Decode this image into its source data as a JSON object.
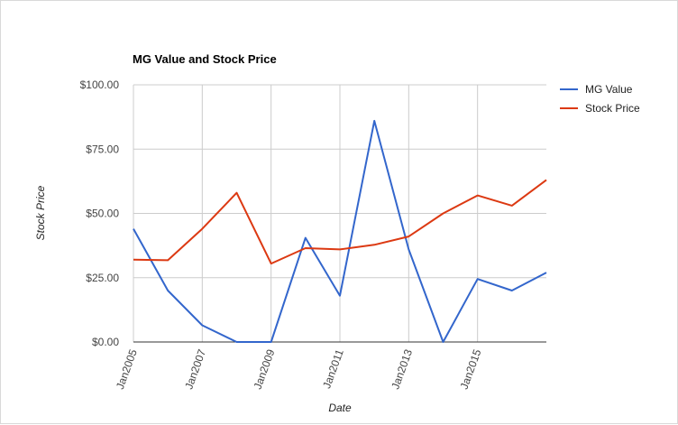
{
  "chart_data": {
    "type": "line",
    "title": "MG Value and Stock Price",
    "xlabel": "Date",
    "ylabel": "Stock Price",
    "x": [
      "Jan2005",
      "Jan2006",
      "Jan2007",
      "Jan2008",
      "Jan2009",
      "Jan2010",
      "Jan2011",
      "Jan2012",
      "Jan2013",
      "Jan2014",
      "Jan2015",
      "Jan2016",
      "Jan2017"
    ],
    "x_tick_labels": [
      "Jan2005",
      "Jan2007",
      "Jan2009",
      "Jan2011",
      "Jan2013",
      "Jan2015"
    ],
    "ylim": [
      0,
      100
    ],
    "y_tick_labels": [
      "$0.00",
      "$25.00",
      "$50.00",
      "$75.00",
      "$100.00"
    ],
    "y_ticks": [
      0,
      25,
      50,
      75,
      100
    ],
    "grid": true,
    "legend_position": "right",
    "series": [
      {
        "name": "MG Value",
        "color": "#3366cc",
        "values": [
          44,
          20,
          6.5,
          0,
          0,
          40.5,
          18,
          86,
          36,
          0,
          24.5,
          20,
          27
        ]
      },
      {
        "name": "Stock Price",
        "color": "#dc3912",
        "values": [
          32,
          31.8,
          44,
          58,
          30.5,
          36.5,
          36,
          37.8,
          41,
          50,
          57,
          53,
          63
        ]
      }
    ]
  }
}
